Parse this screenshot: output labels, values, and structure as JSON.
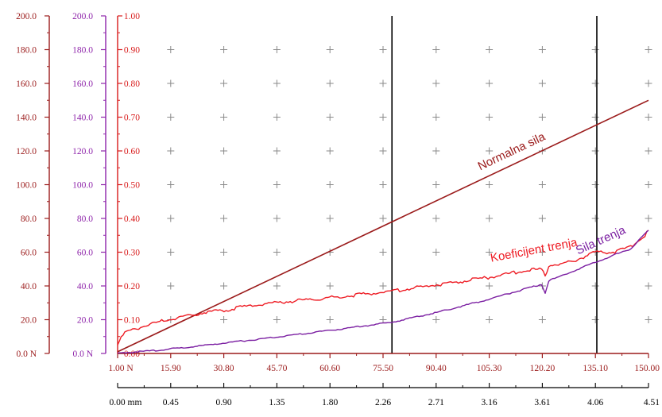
{
  "chart_data": {
    "type": "line",
    "colors": {
      "normal_force": "#9b1b1b",
      "friction_coefficient": "#ee1c24",
      "friction_force": "#7b1fa2",
      "axis_force_left": "#9b1b1b",
      "axis_force_right": "#8e24aa",
      "axis_coefficient": "#d81b1b",
      "grid_plus": "#8a8a8a",
      "marker_lines": "#000000"
    },
    "y_axes": [
      {
        "id": "force_outer",
        "ticks": [
          "0.0 N",
          "20.0",
          "40.0",
          "60.0",
          "80.0",
          "100.0",
          "120.0",
          "140.0",
          "160.0",
          "180.0",
          "200.0"
        ],
        "range": [
          0,
          200
        ]
      },
      {
        "id": "force_inner",
        "ticks": [
          "0.0 N",
          "20.0",
          "40.0",
          "60.0",
          "80.0",
          "100.0",
          "120.0",
          "140.0",
          "160.0",
          "180.0",
          "200.0"
        ],
        "range": [
          0,
          200
        ]
      },
      {
        "id": "coefficient",
        "ticks": [
          "0.00",
          "0.10",
          "0.20",
          "0.30",
          "0.40",
          "0.50",
          "0.60",
          "0.70",
          "0.80",
          "0.90",
          "1.00"
        ],
        "range": [
          0,
          1
        ]
      }
    ],
    "x_axes": [
      {
        "id": "load",
        "ticks": [
          "1.00 N",
          "15.90",
          "30.80",
          "45.70",
          "60.60",
          "75.50",
          "90.40",
          "105.30",
          "120.20",
          "135.10",
          "150.00"
        ],
        "range": [
          1,
          150
        ]
      },
      {
        "id": "distance",
        "ticks": [
          "0.00 mm",
          "0.45",
          "0.90",
          "1.35",
          "1.80",
          "2.26",
          "2.71",
          "3.16",
          "3.61",
          "4.06",
          "4.51"
        ],
        "range": [
          0,
          4.51
        ]
      }
    ],
    "vertical_markers_load": [
      78.0,
      135.5
    ],
    "series": [
      {
        "name": "Normalna sila",
        "axis": "force_inner",
        "x": [
          1.0,
          150.0
        ],
        "y": [
          1.0,
          150.0
        ]
      },
      {
        "name": "Koeficijent trenja",
        "axis": "coefficient",
        "x": [
          1.0,
          3.0,
          8.0,
          15.0,
          22.0,
          28.0,
          32.0,
          40.0,
          50.0,
          60.0,
          70.0,
          78.0,
          85.0,
          95.0,
          105.0,
          115.0,
          120.0,
          121.0,
          122.0,
          128.0,
          135.0,
          140.0,
          145.0,
          149.0,
          150.0
        ],
        "y": [
          0.03,
          0.06,
          0.08,
          0.1,
          0.115,
          0.125,
          0.13,
          0.145,
          0.155,
          0.165,
          0.175,
          0.185,
          0.195,
          0.21,
          0.225,
          0.245,
          0.25,
          0.23,
          0.26,
          0.27,
          0.3,
          0.3,
          0.315,
          0.35,
          0.365
        ]
      },
      {
        "name": "Sila trenja",
        "axis": "force_inner",
        "x": [
          1.0,
          10.0,
          20.0,
          30.0,
          45.0,
          60.0,
          78.0,
          90.0,
          105.0,
          120.0,
          121.0,
          122.0,
          135.0,
          145.0,
          150.0
        ],
        "y": [
          0.2,
          1.5,
          3.5,
          6.0,
          9.5,
          13.5,
          18.5,
          24.0,
          32.0,
          41.0,
          36.0,
          43.0,
          54.0,
          62.0,
          73.0
        ]
      }
    ]
  }
}
